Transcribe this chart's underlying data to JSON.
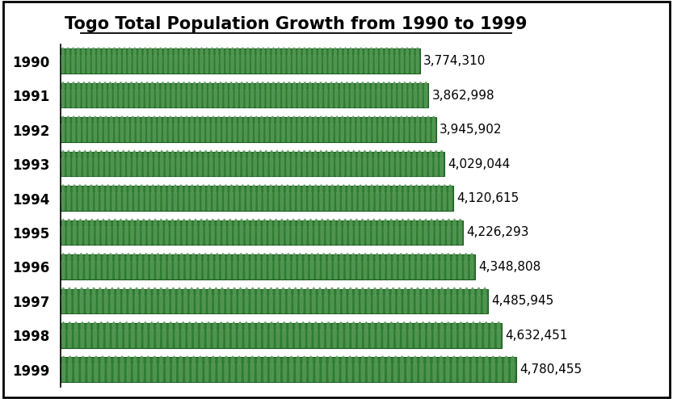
{
  "title": "Togo Total Population Growth from 1990 to 1999",
  "years": [
    "1990",
    "1991",
    "1992",
    "1993",
    "1994",
    "1995",
    "1996",
    "1997",
    "1998",
    "1999"
  ],
  "values": [
    3774310,
    3862998,
    3945902,
    4029044,
    4120615,
    4226293,
    4348808,
    4485945,
    4632451,
    4780455
  ],
  "labels": [
    "3,774,310",
    "3,862,998",
    "3,945,902",
    "4,029,044",
    "4,120,615",
    "4,226,293",
    "4,348,808",
    "4,485,945",
    "4,632,451",
    "4,780,455"
  ],
  "bar_color": "#2e7d32",
  "bar_edge_color": "#1b5e20",
  "person_color": "#5a9a5a",
  "background_color": "#ffffff",
  "border_color": "#000000",
  "title_fontsize": 15,
  "tick_fontsize": 12,
  "value_fontsize": 11,
  "xlim": [
    0,
    5300000
  ],
  "bar_height": 0.72,
  "figure_width": 8.33,
  "figure_height": 4.94,
  "dpi": 100
}
